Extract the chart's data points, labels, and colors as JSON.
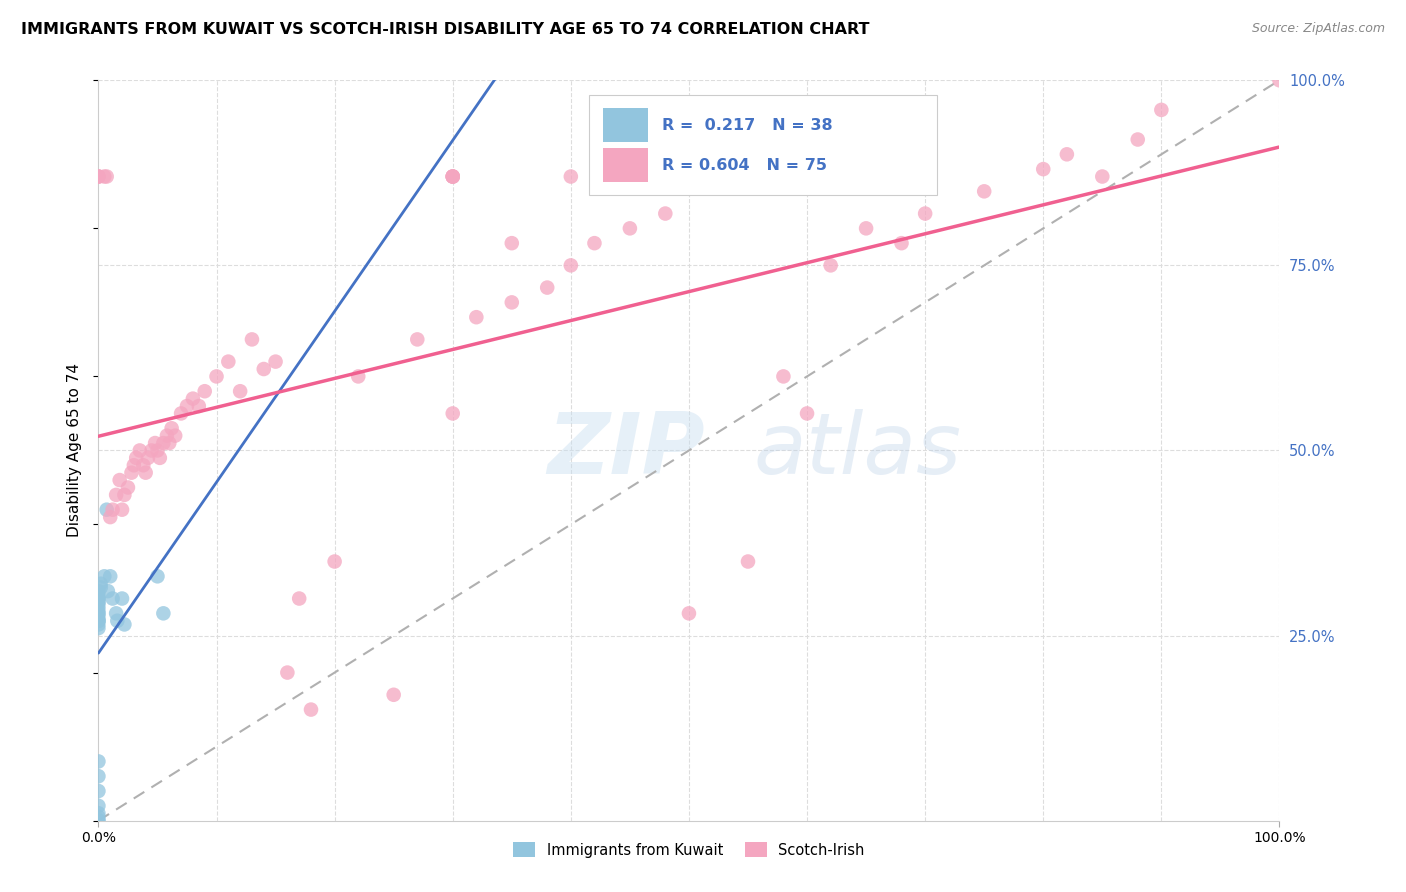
{
  "title": "IMMIGRANTS FROM KUWAIT VS SCOTCH-IRISH DISABILITY AGE 65 TO 74 CORRELATION CHART",
  "source": "Source: ZipAtlas.com",
  "ylabel": "Disability Age 65 to 74",
  "watermark_zip": "ZIP",
  "watermark_atlas": "atlas",
  "legend_line1": "R =  0.217   N = 38",
  "legend_line2": "R = 0.604   N = 75",
  "color_kuwait": "#92c5de",
  "color_scotch": "#f4a6c0",
  "line_kuwait": "#4472c4",
  "line_scotch": "#f06090",
  "line_dashed": "#b0b0b0",
  "kuwait_points_x": [
    0.0,
    0.0,
    0.0,
    0.0,
    0.0,
    0.0,
    0.0,
    0.0,
    0.0,
    0.0,
    0.0,
    0.0,
    0.0,
    0.0,
    0.0,
    0.0,
    0.0,
    0.0,
    0.0,
    0.0,
    0.0,
    0.0,
    0.0,
    0.0,
    0.0,
    0.002,
    0.002,
    0.005,
    0.007,
    0.008,
    0.01,
    0.012,
    0.015,
    0.016,
    0.02,
    0.022,
    0.05,
    0.055
  ],
  "kuwait_points_y": [
    0.3,
    0.31,
    0.3,
    0.305,
    0.295,
    0.29,
    0.285,
    0.3,
    0.295,
    0.28,
    0.275,
    0.27,
    0.265,
    0.27,
    0.26,
    0.28,
    0.27,
    0.08,
    0.06,
    0.04,
    0.02,
    0.01,
    0.005,
    0.0,
    0.0,
    0.315,
    0.32,
    0.33,
    0.42,
    0.31,
    0.33,
    0.3,
    0.28,
    0.27,
    0.3,
    0.265,
    0.33,
    0.28
  ],
  "scotch_points_x": [
    0.0,
    0.0,
    0.0,
    0.005,
    0.007,
    0.01,
    0.012,
    0.015,
    0.018,
    0.02,
    0.022,
    0.025,
    0.028,
    0.03,
    0.032,
    0.035,
    0.038,
    0.04,
    0.042,
    0.045,
    0.048,
    0.05,
    0.052,
    0.055,
    0.058,
    0.06,
    0.062,
    0.065,
    0.07,
    0.075,
    0.08,
    0.085,
    0.09,
    0.1,
    0.11,
    0.12,
    0.13,
    0.14,
    0.15,
    0.16,
    0.17,
    0.18,
    0.2,
    0.22,
    0.25,
    0.27,
    0.3,
    0.3,
    0.3,
    0.3,
    0.3,
    0.32,
    0.35,
    0.35,
    0.38,
    0.4,
    0.4,
    0.42,
    0.45,
    0.48,
    0.5,
    0.55,
    0.58,
    0.6,
    0.62,
    0.65,
    0.68,
    0.7,
    0.75,
    0.8,
    0.82,
    0.85,
    0.88,
    0.9,
    1.0
  ],
  "scotch_points_y": [
    0.87,
    0.87,
    0.87,
    0.87,
    0.87,
    0.41,
    0.42,
    0.44,
    0.46,
    0.42,
    0.44,
    0.45,
    0.47,
    0.48,
    0.49,
    0.5,
    0.48,
    0.47,
    0.49,
    0.5,
    0.51,
    0.5,
    0.49,
    0.51,
    0.52,
    0.51,
    0.53,
    0.52,
    0.55,
    0.56,
    0.57,
    0.56,
    0.58,
    0.6,
    0.62,
    0.58,
    0.65,
    0.61,
    0.62,
    0.2,
    0.3,
    0.15,
    0.35,
    0.6,
    0.17,
    0.65,
    0.55,
    0.87,
    0.87,
    0.87,
    0.87,
    0.68,
    0.7,
    0.78,
    0.72,
    0.75,
    0.87,
    0.78,
    0.8,
    0.82,
    0.28,
    0.35,
    0.6,
    0.55,
    0.75,
    0.8,
    0.78,
    0.82,
    0.85,
    0.88,
    0.9,
    0.87,
    0.92,
    0.96,
    1.0
  ]
}
